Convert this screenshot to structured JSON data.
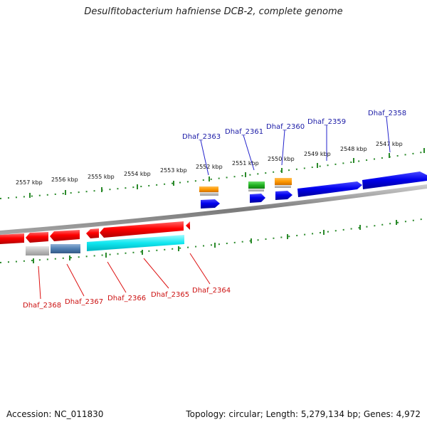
{
  "title": "Desulfitobacterium hafniense DCB-2, complete genome",
  "footer": {
    "accession": "Accession: NC_011830",
    "summary": "Topology: circular; Length: 5,279,134 bp; Genes: 4,972"
  },
  "colors": {
    "forward_label": "#1a1aa6",
    "reverse_label": "#cc1111",
    "ruler": "#2a8a2a",
    "backbone": "#888888"
  },
  "ruler_top_labels": [
    "2557 kbp",
    "2556 kbp",
    "2555 kbp",
    "2554 kbp",
    "2553 kbp",
    "2552 kbp",
    "2551 kbp",
    "2550 kbp",
    "2549 kbp",
    "2548 kbp",
    "2547 kbp"
  ],
  "forward_genes": [
    "Dhaf_2363",
    "Dhaf_2361",
    "Dhaf_2360",
    "Dhaf_2359",
    "Dhaf_2358"
  ],
  "reverse_genes": [
    "Dhaf_2368",
    "Dhaf_2367",
    "Dhaf_2366",
    "Dhaf_2365",
    "Dhaf_2364"
  ]
}
